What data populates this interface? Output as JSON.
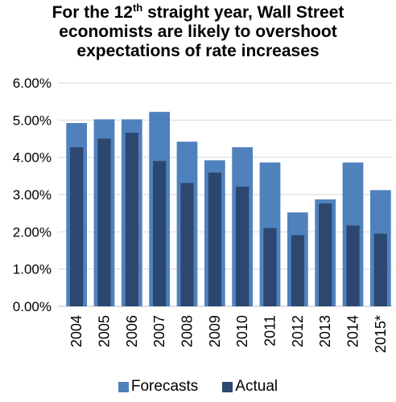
{
  "chart_data": {
    "type": "bar",
    "title": {
      "line1_pre": "For the 12",
      "line1_sup": "th",
      "line1_post": " straight year, Wall Street",
      "line2": "economists are likely to overshoot",
      "line3": "expectations of rate increases"
    },
    "categories": [
      "2004",
      "2005",
      "2006",
      "2007",
      "2008",
      "2009",
      "2010",
      "2011",
      "2012",
      "2013",
      "2014",
      "2015*"
    ],
    "series": [
      {
        "name": "Forecasts",
        "color": "#4f81bd",
        "values": [
          4.92,
          5.02,
          5.02,
          5.22,
          4.42,
          3.92,
          4.27,
          3.86,
          2.52,
          2.87,
          3.86,
          3.12
        ]
      },
      {
        "name": "Actual",
        "color": "#2c4770",
        "values": [
          4.27,
          4.5,
          4.66,
          3.9,
          3.31,
          3.59,
          3.21,
          2.1,
          1.91,
          2.76,
          2.17,
          1.95
        ]
      }
    ],
    "y_ticks": [
      "0.00%",
      "1.00%",
      "2.00%",
      "3.00%",
      "4.00%",
      "5.00%",
      "6.00%"
    ],
    "ylim": [
      0,
      6
    ],
    "grid": true,
    "overlap": true,
    "legend": "bottom"
  }
}
